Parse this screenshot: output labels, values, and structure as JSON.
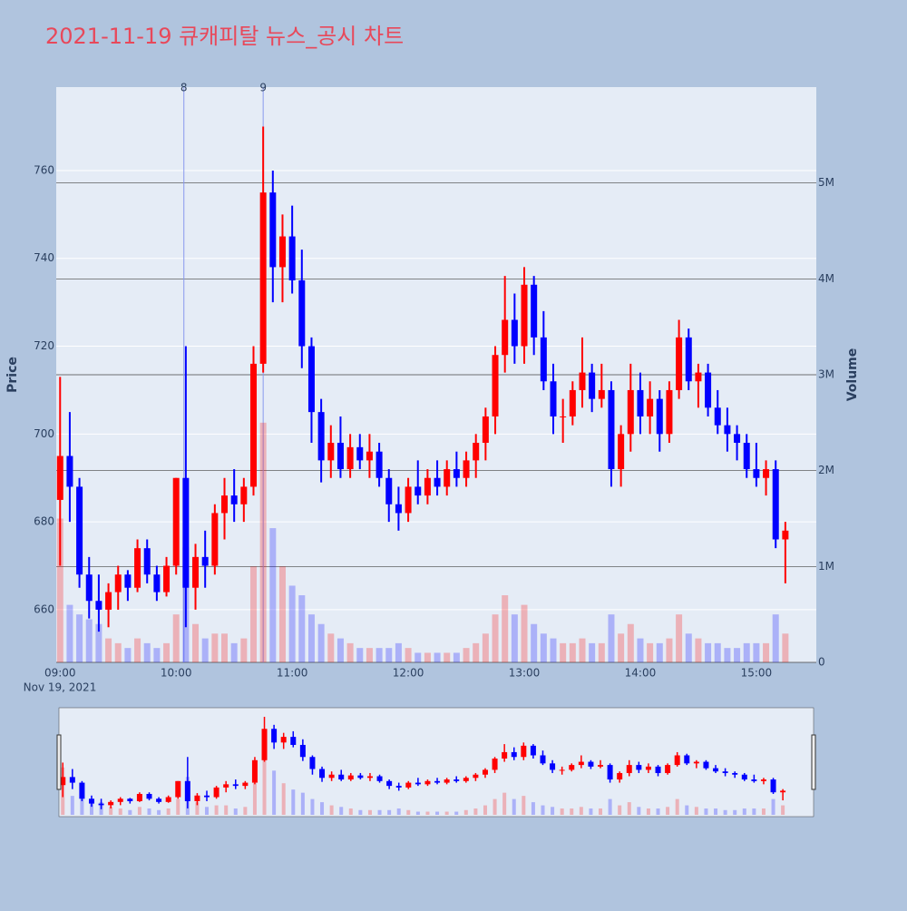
{
  "chart_data": {
    "type": "candlestick",
    "title": "2021-11-19 큐캐피탈 뉴스_공시 차트",
    "x": [
      "2021-11-19 09:00",
      "2021-11-19 09:05",
      "2021-11-19 09:10",
      "2021-11-19 09:15",
      "2021-11-19 09:20",
      "2021-11-19 09:25",
      "2021-11-19 09:30",
      "2021-11-19 09:35",
      "2021-11-19 09:40",
      "2021-11-19 09:45",
      "2021-11-19 09:50",
      "2021-11-19 09:55",
      "2021-11-19 10:00",
      "2021-11-19 10:05",
      "2021-11-19 10:10",
      "2021-11-19 10:15",
      "2021-11-19 10:20",
      "2021-11-19 10:25",
      "2021-11-19 10:30",
      "2021-11-19 10:35",
      "2021-11-19 10:40",
      "2021-11-19 10:45",
      "2021-11-19 10:50",
      "2021-11-19 10:55",
      "2021-11-19 11:00",
      "2021-11-19 11:05",
      "2021-11-19 11:10",
      "2021-11-19 11:15",
      "2021-11-19 11:20",
      "2021-11-19 11:25",
      "2021-11-19 11:30",
      "2021-11-19 11:35",
      "2021-11-19 11:40",
      "2021-11-19 11:45",
      "2021-11-19 11:50",
      "2021-11-19 11:55",
      "2021-11-19 12:00",
      "2021-11-19 12:05",
      "2021-11-19 12:10",
      "2021-11-19 12:15",
      "2021-11-19 12:20",
      "2021-11-19 12:25",
      "2021-11-19 12:30",
      "2021-11-19 12:35",
      "2021-11-19 12:40",
      "2021-11-19 12:45",
      "2021-11-19 12:50",
      "2021-11-19 12:55",
      "2021-11-19 13:00",
      "2021-11-19 13:05",
      "2021-11-19 13:10",
      "2021-11-19 13:15",
      "2021-11-19 13:20",
      "2021-11-19 13:25",
      "2021-11-19 13:30",
      "2021-11-19 13:35",
      "2021-11-19 13:40",
      "2021-11-19 13:45",
      "2021-11-19 13:50",
      "2021-11-19 13:55",
      "2021-11-19 14:00",
      "2021-11-19 14:05",
      "2021-11-19 14:10",
      "2021-11-19 14:15",
      "2021-11-19 14:20",
      "2021-11-19 14:25",
      "2021-11-19 14:30",
      "2021-11-19 14:35",
      "2021-11-19 14:40",
      "2021-11-19 14:45",
      "2021-11-19 14:50",
      "2021-11-19 14:55",
      "2021-11-19 15:00",
      "2021-11-19 15:05",
      "2021-11-19 15:10",
      "2021-11-19 15:15"
    ],
    "open": [
      685,
      695,
      688,
      668,
      662,
      660,
      664,
      668,
      665,
      674,
      668,
      664,
      670,
      690,
      665,
      672,
      670,
      682,
      686,
      684,
      688,
      716,
      755,
      738,
      745,
      735,
      720,
      705,
      694,
      698,
      692,
      697,
      694,
      696,
      690,
      684,
      682,
      688,
      686,
      690,
      688,
      692,
      690,
      694,
      698,
      704,
      718,
      726,
      720,
      734,
      722,
      712,
      704,
      704,
      710,
      714,
      708,
      710,
      692,
      700,
      710,
      704,
      708,
      700,
      710,
      722,
      712,
      714,
      706,
      702,
      700,
      698,
      692,
      690,
      692,
      676
    ],
    "high": [
      713,
      705,
      690,
      672,
      668,
      666,
      670,
      669,
      676,
      676,
      670,
      672,
      690,
      720,
      675,
      678,
      684,
      690,
      692,
      690,
      720,
      770,
      760,
      750,
      752,
      742,
      722,
      708,
      702,
      704,
      700,
      700,
      700,
      698,
      692,
      688,
      690,
      694,
      692,
      694,
      694,
      696,
      696,
      700,
      706,
      720,
      736,
      732,
      738,
      736,
      728,
      716,
      708,
      712,
      722,
      716,
      716,
      712,
      702,
      716,
      714,
      712,
      710,
      712,
      726,
      724,
      716,
      716,
      710,
      706,
      702,
      700,
      698,
      694,
      694,
      680
    ],
    "low": [
      670,
      680,
      665,
      658,
      655,
      656,
      660,
      662,
      664,
      666,
      662,
      663,
      668,
      656,
      660,
      665,
      668,
      676,
      680,
      680,
      686,
      714,
      730,
      730,
      732,
      715,
      698,
      689,
      690,
      690,
      690,
      692,
      690,
      688,
      680,
      678,
      680,
      684,
      684,
      686,
      686,
      688,
      688,
      690,
      694,
      700,
      714,
      716,
      716,
      718,
      710,
      700,
      698,
      702,
      706,
      705,
      706,
      688,
      688,
      696,
      700,
      700,
      696,
      698,
      708,
      710,
      706,
      704,
      700,
      696,
      694,
      690,
      688,
      686,
      674,
      666
    ],
    "close": [
      695,
      688,
      668,
      662,
      660,
      664,
      668,
      665,
      674,
      668,
      664,
      670,
      690,
      665,
      672,
      670,
      682,
      686,
      684,
      688,
      716,
      755,
      738,
      745,
      735,
      720,
      705,
      694,
      698,
      692,
      697,
      694,
      696,
      690,
      684,
      682,
      688,
      686,
      690,
      688,
      692,
      690,
      694,
      698,
      704,
      718,
      726,
      720,
      734,
      722,
      712,
      704,
      704,
      710,
      714,
      708,
      710,
      692,
      700,
      710,
      704,
      708,
      700,
      710,
      722,
      712,
      714,
      706,
      702,
      700,
      698,
      692,
      690,
      692,
      676,
      678
    ],
    "volume": [
      1500000,
      600000,
      500000,
      450000,
      400000,
      250000,
      200000,
      150000,
      250000,
      200000,
      150000,
      200000,
      500000,
      1200000,
      400000,
      250000,
      300000,
      300000,
      200000,
      250000,
      1000000,
      2500000,
      1400000,
      1000000,
      800000,
      700000,
      500000,
      400000,
      300000,
      250000,
      200000,
      150000,
      150000,
      150000,
      150000,
      200000,
      150000,
      100000,
      100000,
      100000,
      100000,
      100000,
      150000,
      200000,
      300000,
      500000,
      700000,
      500000,
      600000,
      400000,
      300000,
      250000,
      200000,
      200000,
      250000,
      200000,
      200000,
      500000,
      300000,
      400000,
      250000,
      200000,
      200000,
      250000,
      500000,
      300000,
      250000,
      200000,
      200000,
      150000,
      150000,
      200000,
      200000,
      200000,
      500000,
      300000
    ],
    "increasing_color": "#ff0000",
    "decreasing_color": "#0000ff",
    "xlim": [
      "2021-11-19 08:58",
      "2021-11-19 15:31"
    ],
    "xticks": [
      {
        "value": "2021-11-19 09:00",
        "label": "09:00"
      },
      {
        "value": "2021-11-19 10:00",
        "label": "10:00"
      },
      {
        "value": "2021-11-19 11:00",
        "label": "11:00"
      },
      {
        "value": "2021-11-19 12:00",
        "label": "12:00"
      },
      {
        "value": "2021-11-19 13:00",
        "label": "13:00"
      },
      {
        "value": "2021-11-19 14:00",
        "label": "14:00"
      },
      {
        "value": "2021-11-19 15:00",
        "label": "15:00"
      }
    ],
    "x_sublabel": "Nov 19, 2021",
    "ylabel": "Price",
    "ylim": [
      648,
      779
    ],
    "yticks": [
      660,
      680,
      700,
      720,
      740,
      760
    ],
    "y2label": "Volume",
    "y2lim": [
      0,
      6000000
    ],
    "y2ticks": [
      {
        "value": 0,
        "label": "0"
      },
      {
        "value": 1000000,
        "label": "1M"
      },
      {
        "value": 2000000,
        "label": "2M"
      },
      {
        "value": 3000000,
        "label": "3M"
      },
      {
        "value": 4000000,
        "label": "4M"
      },
      {
        "value": 5000000,
        "label": "5M"
      }
    ],
    "annotations": [
      {
        "x": "2021-11-19 10:04",
        "text": "8"
      },
      {
        "x": "2021-11-19 10:45",
        "text": "9"
      }
    ],
    "rangeslider": true
  }
}
